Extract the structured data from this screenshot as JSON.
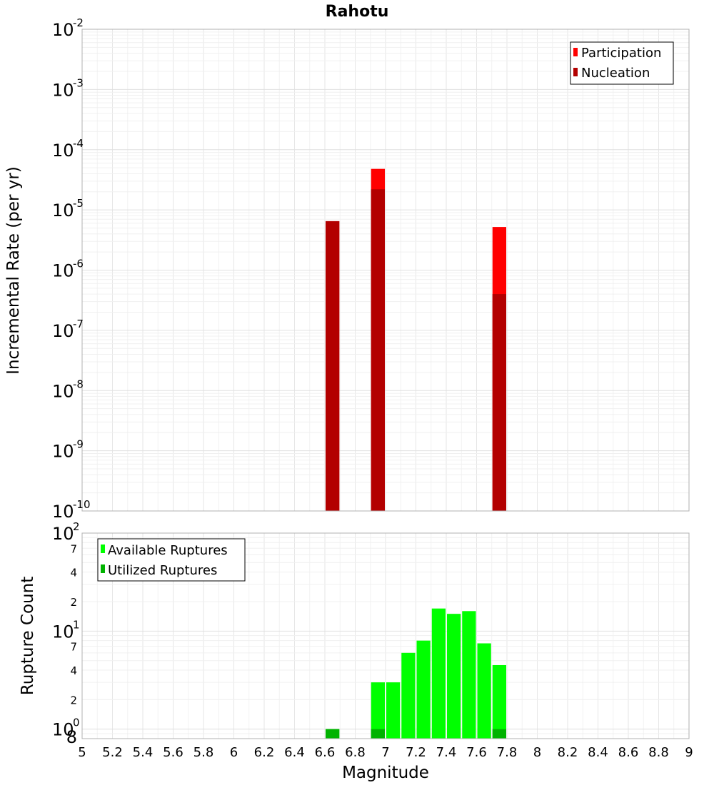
{
  "chart_data": [
    {
      "type": "bar",
      "title": "Rahotu",
      "xlabel": "",
      "ylabel": "Incremental Rate (per yr)",
      "yscale": "log",
      "xlim": [
        5,
        9
      ],
      "ylim": [
        1e-10,
        0.01
      ],
      "y_tick_exponents": [
        "-10",
        "-9",
        "-8",
        "-7",
        "-6",
        "-5",
        "-4",
        "-3",
        "-2"
      ],
      "y_tick_base": "10",
      "legend_position": "top-right",
      "bar_width": 0.1,
      "series": [
        {
          "name": "Participation",
          "color": "#ff0000",
          "x": [
            6.65,
            6.95,
            7.75
          ],
          "values": [
            6.5e-06,
            4.8e-05,
            5.2e-06
          ]
        },
        {
          "name": "Nucleation",
          "color": "#b30000",
          "x": [
            6.65,
            6.95,
            7.75
          ],
          "values": [
            6.5e-06,
            2.2e-05,
            4e-07
          ]
        }
      ],
      "grid": true
    },
    {
      "type": "bar",
      "title": "",
      "xlabel": "Magnitude",
      "ylabel": "Rupture Count",
      "yscale": "log",
      "xlim": [
        5,
        9
      ],
      "ylim": [
        0.8,
        100
      ],
      "y_tick_base": "10",
      "y_major_exponents": [
        "0",
        "1",
        "2"
      ],
      "y_minor_labels": [
        "8",
        "2",
        "4",
        "7",
        "2",
        "4",
        "7"
      ],
      "y_minor_values": [
        0.8,
        2,
        4,
        7,
        20,
        40,
        70
      ],
      "x_ticks": [
        "5",
        "5.2",
        "5.4",
        "5.6",
        "5.8",
        "6",
        "6.2",
        "6.4",
        "6.6",
        "6.8",
        "7",
        "7.2",
        "7.4",
        "7.6",
        "7.8",
        "8",
        "8.2",
        "8.4",
        "8.6",
        "8.8",
        "9"
      ],
      "legend_position": "top-left",
      "bar_width": 0.1,
      "series": [
        {
          "name": "Available Ruptures",
          "color": "#00ff00",
          "x": [
            6.65,
            6.95,
            7.05,
            7.15,
            7.25,
            7.35,
            7.45,
            7.55,
            7.65,
            7.75
          ],
          "values": [
            1,
            3,
            3,
            6,
            8,
            17,
            15,
            16,
            7.5,
            4.5
          ]
        },
        {
          "name": "Utilized Ruptures",
          "color": "#00b300",
          "x": [
            6.65,
            6.95,
            7.75
          ],
          "values": [
            1,
            1,
            1
          ]
        }
      ],
      "grid": true
    }
  ]
}
